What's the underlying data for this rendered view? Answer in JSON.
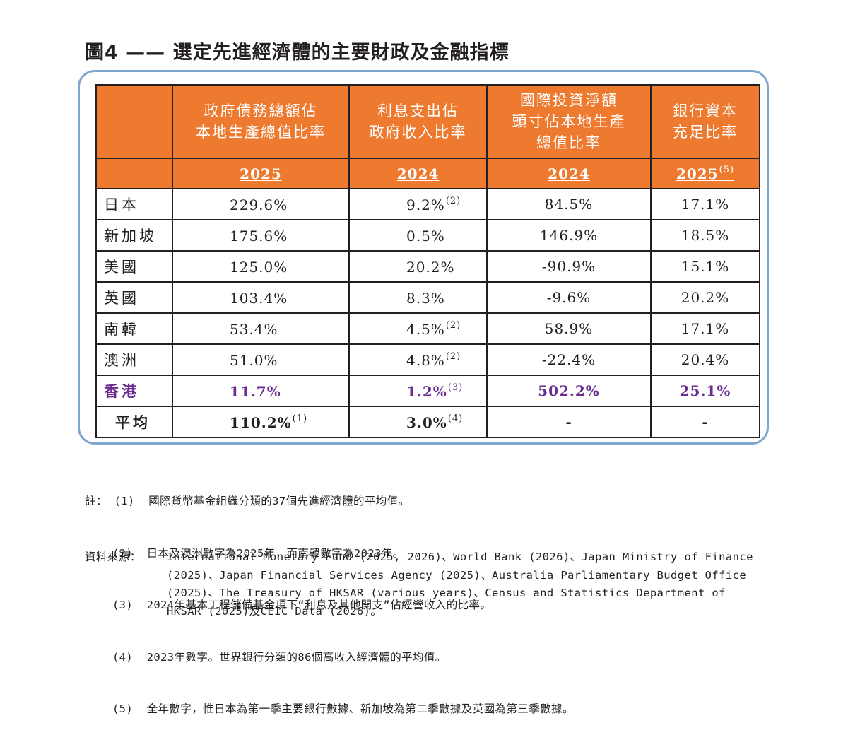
{
  "title": "圖4 —— 選定先進經濟體的主要財政及金融指標",
  "table": {
    "headers": [
      "政府債務總額佔\n本地生產總值比率",
      "利息支出佔\n政府收入比率",
      "國際投資淨額\n頭寸佔本地生產\n總值比率",
      "銀行資本\n充足比率"
    ],
    "years": [
      "2025",
      "2024",
      "2024",
      "2025"
    ],
    "year_notes": [
      "",
      "",
      "",
      "(5)"
    ],
    "rows": [
      {
        "country": "日本",
        "v1": "229.6%",
        "n1": "",
        "v2": "9.2%",
        "n2": "(2)",
        "v3": "84.5%",
        "v4": "17.1%"
      },
      {
        "country": "新加坡",
        "v1": "175.6%",
        "n1": "",
        "v2": "0.5%",
        "n2": "",
        "v3": "146.9%",
        "v4": "18.5%"
      },
      {
        "country": "美國",
        "v1": "125.0%",
        "n1": "",
        "v2": "20.2%",
        "n2": "",
        "v3": "-90.9%",
        "v4": "15.1%"
      },
      {
        "country": "英國",
        "v1": "103.4%",
        "n1": "",
        "v2": "8.3%",
        "n2": "",
        "v3": "-9.6%",
        "v4": "20.2%"
      },
      {
        "country": "南韓",
        "v1": "53.4%",
        "n1": "",
        "v2": "4.5%",
        "n2": "(2)",
        "v3": "58.9%",
        "v4": "17.1%"
      },
      {
        "country": "澳洲",
        "v1": "51.0%",
        "n1": "",
        "v2": "4.8%",
        "n2": "(2)",
        "v3": "-22.4%",
        "v4": "20.4%"
      },
      {
        "country": "香港",
        "v1": "11.7%",
        "n1": "",
        "v2": "1.2%",
        "n2": "(3)",
        "v3": "502.2%",
        "v4": "25.1%"
      },
      {
        "country": "平均",
        "v1": "110.2%",
        "n1": "(1)",
        "v2": "3.0%",
        "n2": "(4)",
        "v3": "-",
        "v4": "-"
      }
    ],
    "highlight_color": "#6a2c91",
    "header_color": "#ee7a30"
  },
  "notes": {
    "label": "註：",
    "items": [
      "(1)  國際貨幣基金組織分類的37個先進經濟體的平均值。",
      "(2)  日本及澳洲數字為2025年，而南韓數字為2023年。",
      "(3)  2024年基本工程儲備基金項下“利息及其他開支”佔經營收入的比率。",
      "(4)  2023年數字。世界銀行分類的86個高收入經濟體的平均值。",
      "(5)  全年數字，惟日本為第一季主要銀行數據、新加坡為第二季數據及英國為第三季數據。"
    ]
  },
  "source": {
    "label": "資料來源：",
    "text": "International Monetary Fund (2025, 2026)、World Bank (2026)、Japan Ministry of Finance (2025)、Japan Financial Services Agency (2025)、Australia Parliamentary Budget Office (2025)、The Treasury of HKSAR (various years)、Census and Statistics Department of HKSAR (2025)及CEIC Data (2026)。"
  }
}
